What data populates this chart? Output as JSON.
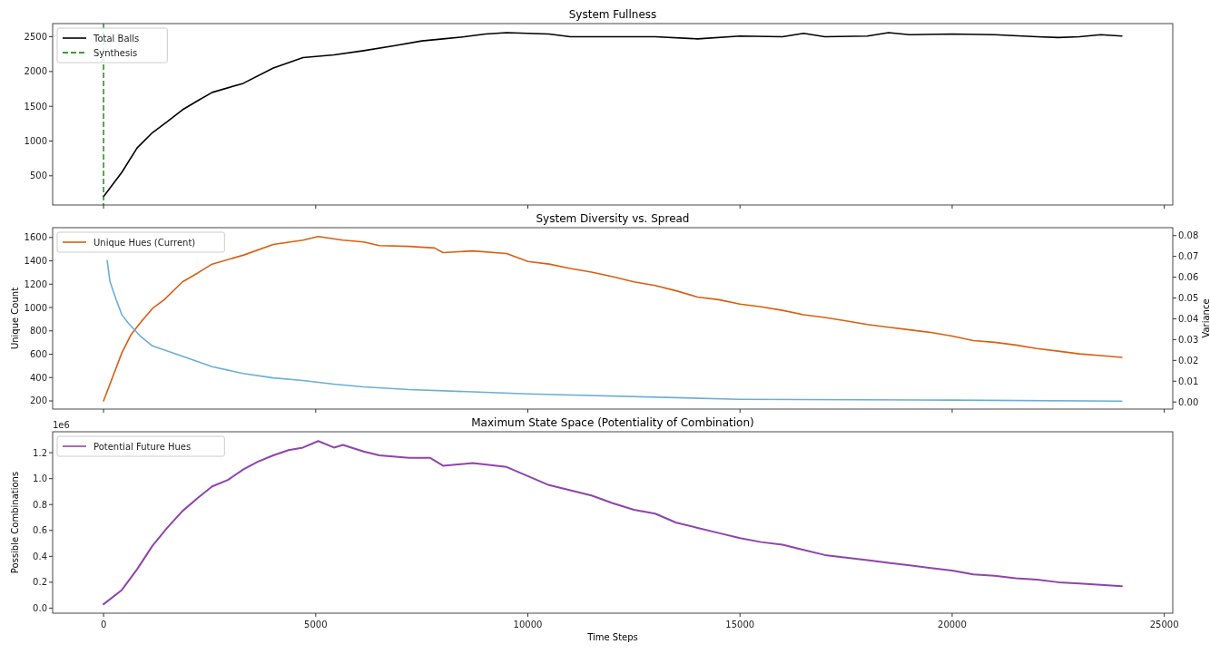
{
  "chart_data": [
    {
      "type": "line",
      "title": "System Fullness",
      "xlim": [
        -1200,
        25200
      ],
      "xticks": [
        0,
        5000,
        10000,
        15000,
        20000,
        25000
      ],
      "ylim": [
        80,
        2690
      ],
      "yticks": [
        500,
        1000,
        1500,
        2000,
        2500
      ],
      "tick_labels": "y",
      "legend": "top left",
      "series": [
        {
          "name": "Total Balls",
          "color": "#000000",
          "x": [
            0,
            430,
            790,
            1150,
            1500,
            1860,
            2220,
            2560,
            3290,
            4000,
            4700,
            5430,
            6130,
            6840,
            7500,
            8000,
            8500,
            9000,
            9500,
            10000,
            10500,
            11000,
            12000,
            13000,
            14000,
            15000,
            16000,
            16500,
            17000,
            18000,
            18500,
            19000,
            20000,
            21000,
            22000,
            22500,
            23000,
            23500,
            24000
          ],
          "values": [
            200,
            550,
            900,
            1120,
            1280,
            1450,
            1580,
            1700,
            1830,
            2050,
            2200,
            2240,
            2300,
            2370,
            2440,
            2470,
            2500,
            2540,
            2560,
            2550,
            2540,
            2500,
            2500,
            2500,
            2470,
            2510,
            2500,
            2550,
            2500,
            2510,
            2560,
            2530,
            2540,
            2530,
            2500,
            2490,
            2500,
            2530,
            2510
          ]
        }
      ],
      "ref_lines": [
        {
          "axis": "x",
          "value": 0,
          "label": "Synthesis",
          "color": "#007a00",
          "line_style": "dashed"
        }
      ]
    },
    {
      "type": "line",
      "title": "System Diversity vs. Spread",
      "ylabel": "Unique Count",
      "y2label": "Variance",
      "xlim": [
        -1200,
        25200
      ],
      "xticks": [
        0,
        5000,
        10000,
        15000,
        20000,
        25000
      ],
      "ylim": [
        130,
        1684
      ],
      "yticks": [
        200,
        400,
        600,
        800,
        1000,
        1200,
        1400,
        1600
      ],
      "y2lim": [
        -0.0034,
        0.0838
      ],
      "y2ticks": [
        {
          "value": 0,
          "label": "0.00"
        },
        0.01,
        0.02,
        0.03,
        0.04,
        0.05,
        0.06,
        0.07,
        0.08
      ],
      "tick_labels": "y",
      "legend": "top left",
      "series": [
        {
          "name": "Unique Hues (Current)",
          "color": "#d95f0e",
          "x": [
            0,
            430,
            640,
            850,
            1150,
            1430,
            1860,
            2220,
            2560,
            3290,
            4000,
            4700,
            5060,
            5640,
            6130,
            6500,
            7200,
            7800,
            8000,
            8700,
            9500,
            10000,
            10500,
            11000,
            11500,
            12000,
            12500,
            13000,
            13500,
            14000,
            14500,
            15000,
            15500,
            16000,
            16500,
            17000,
            17500,
            18000,
            18500,
            19000,
            19500,
            20000,
            20500,
            21000,
            21500,
            22000,
            22500,
            23000,
            23500,
            24000
          ],
          "values": [
            200,
            611,
            763,
            862,
            991,
            1067,
            1220,
            1296,
            1372,
            1448,
            1540,
            1577,
            1608,
            1577,
            1562,
            1530,
            1524,
            1510,
            1470,
            1485,
            1463,
            1395,
            1372,
            1334,
            1303,
            1265,
            1220,
            1189,
            1143,
            1090,
            1067,
            1029,
            1006,
            976,
            938,
            915,
            885,
            854,
            831,
            809,
            786,
            755,
            717,
            702,
            679,
            649,
            626,
            603,
            588,
            573
          ]
        },
        {
          "color": "#6baed6",
          "axis": "y2",
          "x": [
            85,
            150,
            300,
            430,
            580,
            850,
            1150,
            1860,
            2560,
            3290,
            4000,
            4700,
            5430,
            6130,
            7200,
            10000,
            15000,
            20000,
            24000
          ],
          "values": [
            0.068,
            0.058,
            0.049,
            0.042,
            0.038,
            0.032,
            0.027,
            0.022,
            0.017,
            0.0137,
            0.0116,
            0.0103,
            0.0086,
            0.0073,
            0.006,
            0.0039,
            0.0013,
            0.0009,
            0.0004
          ]
        }
      ]
    },
    {
      "type": "line",
      "title": "Maximum State Space (Potentiality of Combination)",
      "xlabel": "Time Steps",
      "ylabel": "Possible Combinations",
      "annotations": [
        "1e6"
      ],
      "xlim": [
        -1200,
        25200
      ],
      "xticks": [
        0,
        5000,
        10000,
        15000,
        20000,
        25000
      ],
      "ylim": [
        -0.039,
        1.362
      ],
      "yticks": [
        {
          "value": 0,
          "label": "0.0"
        },
        0.2,
        0.4,
        0.6,
        0.8,
        {
          "value": 1,
          "label": "1.0"
        },
        1.2
      ],
      "legend": "top left",
      "series": [
        {
          "name": "Potential Future Hues",
          "color": "#8e44ad",
          "x": [
            0,
            430,
            790,
            1150,
            1500,
            1860,
            2220,
            2560,
            2930,
            3290,
            3630,
            4000,
            4360,
            4700,
            5060,
            5430,
            5640,
            6130,
            6500,
            7200,
            7700,
            8000,
            8700,
            9500,
            10000,
            10500,
            11000,
            11500,
            12000,
            12500,
            13000,
            13500,
            14000,
            14500,
            15000,
            15500,
            16000,
            16500,
            17000,
            17500,
            18000,
            18500,
            19000,
            19500,
            20000,
            20500,
            21000,
            21500,
            22000,
            22500,
            23000,
            23500,
            24000
          ],
          "values": [
            0.03,
            0.14,
            0.3,
            0.48,
            0.62,
            0.75,
            0.85,
            0.94,
            0.99,
            1.07,
            1.13,
            1.18,
            1.22,
            1.24,
            1.29,
            1.24,
            1.26,
            1.21,
            1.18,
            1.16,
            1.16,
            1.1,
            1.12,
            1.09,
            1.02,
            0.95,
            0.91,
            0.87,
            0.81,
            0.76,
            0.73,
            0.66,
            0.62,
            0.58,
            0.54,
            0.51,
            0.49,
            0.45,
            0.41,
            0.39,
            0.37,
            0.35,
            0.33,
            0.31,
            0.29,
            0.26,
            0.25,
            0.23,
            0.22,
            0.2,
            0.19,
            0.18,
            0.17
          ]
        }
      ]
    }
  ]
}
